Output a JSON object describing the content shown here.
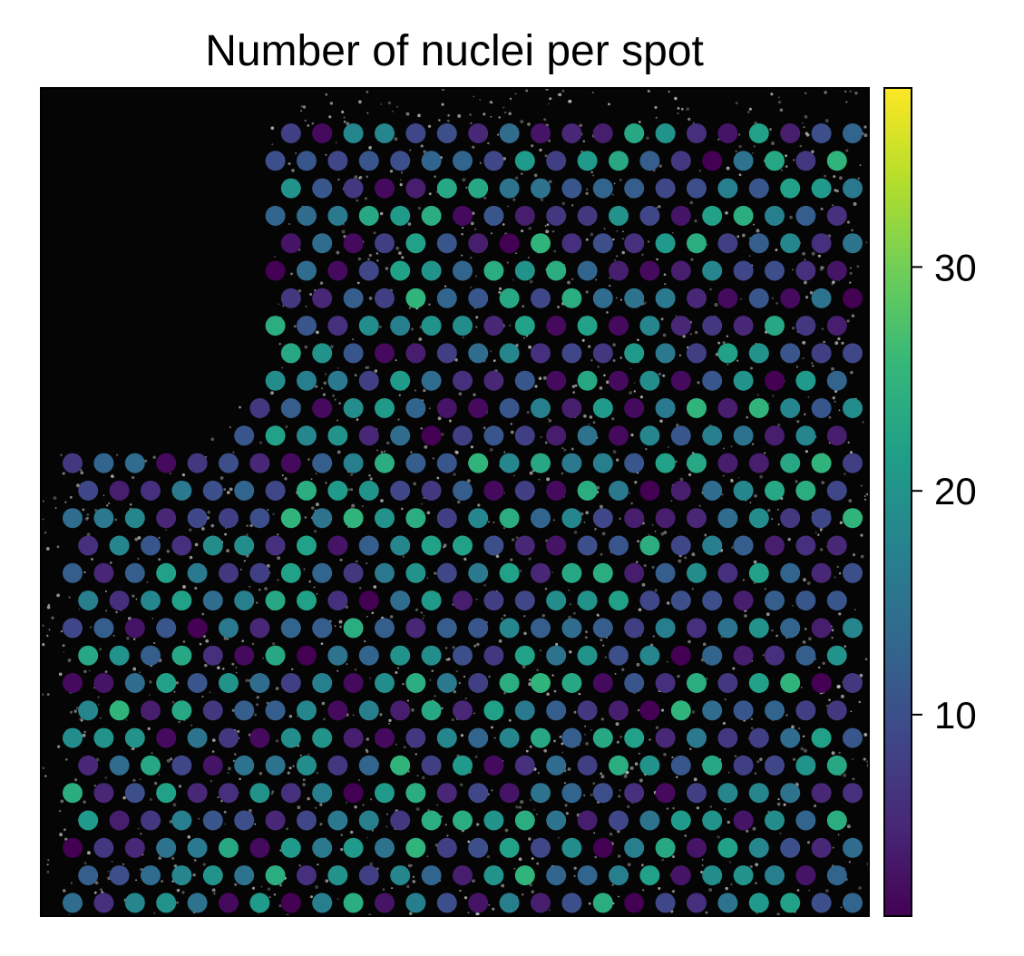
{
  "chart_data": {
    "type": "scatter",
    "title": "Number of nuclei per spot",
    "xlabel": "",
    "ylabel": "",
    "background": "tissue-image",
    "grid": false,
    "legend": "none",
    "colorbar": {
      "placement": "right",
      "colormap": "viridis",
      "range": [
        1,
        38
      ],
      "ticks": [
        10,
        20,
        30
      ],
      "tick_labels": [
        "10",
        "20",
        "30"
      ]
    },
    "colormap_stops": [
      "#440154",
      "#482878",
      "#3e4989",
      "#31688e",
      "#26828e",
      "#1f9e89",
      "#35b779",
      "#6ece58",
      "#b5de2b",
      "#fde725"
    ],
    "plot_background": "#050505",
    "spot_grid": {
      "rows": 29,
      "cols": 26
    },
    "spot_values": [
      [],
      [],
      [],
      [],
      [],
      [],
      [],
      [],
      [],
      [],
      [],
      [],
      [],
      [],
      [],
      [],
      [],
      [],
      [],
      [],
      [],
      [],
      [],
      [],
      [],
      [],
      [],
      [],
      []
    ]
  }
}
